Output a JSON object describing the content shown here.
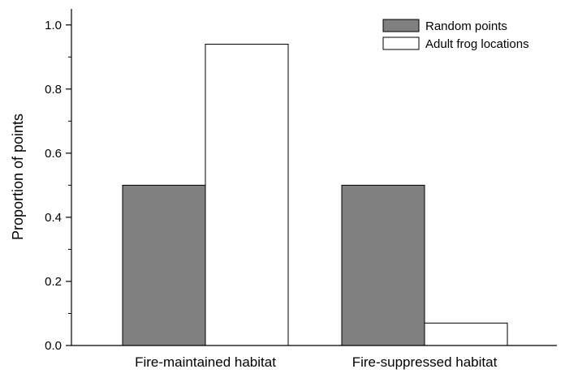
{
  "chart_data": {
    "type": "bar",
    "title": "",
    "xlabel": "",
    "ylabel": "Proportion of points",
    "categories": [
      "Fire-maintained habitat",
      "Fire-suppressed habitat"
    ],
    "series": [
      {
        "name": "Random points",
        "values": [
          0.5,
          0.5
        ],
        "color": "#808080"
      },
      {
        "name": "Adult frog locations",
        "values": [
          0.94,
          0.07
        ],
        "color": "#ffffff"
      }
    ],
    "ylim": [
      0,
      1.05
    ],
    "yticks": [
      0.0,
      0.2,
      0.4,
      0.6,
      0.8,
      1.0
    ],
    "ytick_labels": [
      "0.0",
      "0.2",
      "0.4",
      "0.6",
      "0.8",
      "1.0"
    ],
    "grid": false,
    "legend_position": "top-right"
  }
}
